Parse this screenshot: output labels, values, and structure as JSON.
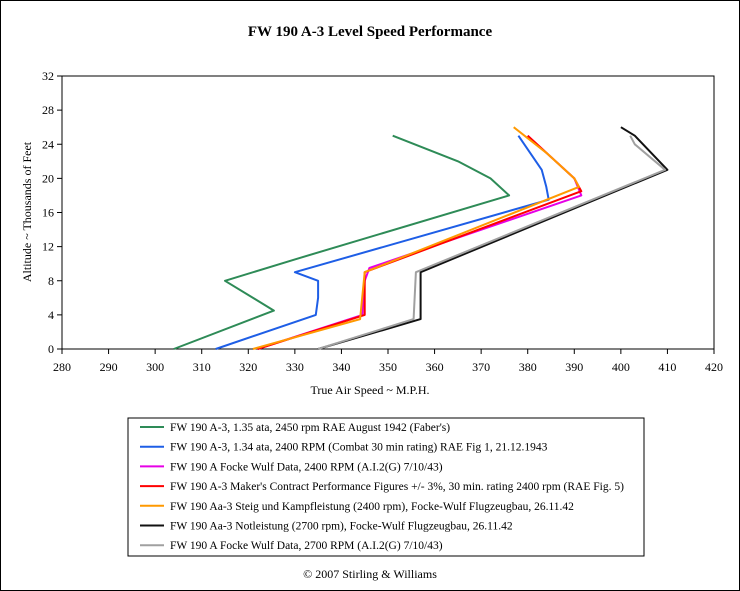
{
  "chart_data": {
    "type": "line",
    "title": "FW 190 A-3 Level Speed Performance",
    "xlabel": "True Air Speed ~ M.P.H.",
    "ylabel": "Altitude ~ Thousands of Feet",
    "xlim": [
      280,
      420
    ],
    "ylim": [
      0,
      32
    ],
    "xticks": [
      280,
      290,
      300,
      310,
      320,
      330,
      340,
      350,
      360,
      370,
      380,
      390,
      400,
      410,
      420
    ],
    "yticks": [
      0,
      4,
      8,
      12,
      16,
      20,
      24,
      28,
      32
    ],
    "grid": false,
    "legend_position": "bottom",
    "series": [
      {
        "name": "FW 190 A-3, 1.35 ata, 2450 rpm RAE August 1942 (Faber's)",
        "color": "#2e8b57",
        "points": [
          [
            304,
            0
          ],
          [
            325.5,
            4.5
          ],
          [
            315,
            8
          ],
          [
            330,
            10.5
          ],
          [
            376,
            18
          ],
          [
            372,
            20
          ],
          [
            365,
            22
          ],
          [
            351,
            25
          ]
        ]
      },
      {
        "name": "FW 190 A-3, 1.34 ata, 2400 RPM (Combat 30 min rating) RAE Fig 1, 21.12.1943",
        "color": "#1e5ee6",
        "points": [
          [
            313,
            0
          ],
          [
            334.5,
            4
          ],
          [
            335,
            6
          ],
          [
            335,
            8
          ],
          [
            330,
            9
          ],
          [
            384.5,
            17.5
          ],
          [
            384,
            19
          ],
          [
            383,
            21
          ],
          [
            378,
            25
          ]
        ]
      },
      {
        "name": "FW 190 A Focke Wulf Data, 2400 RPM (A.I.2(G) 7/10/43)",
        "color": "#e600e6",
        "points": [
          [
            322,
            0
          ],
          [
            344.5,
            4
          ],
          [
            345,
            8
          ],
          [
            346,
            9.5
          ],
          [
            391.5,
            18
          ],
          [
            390,
            20
          ],
          [
            386,
            22
          ],
          [
            380,
            25
          ]
        ]
      },
      {
        "name": "FW 190 A-3 Maker's Contract Performance Figures +/- 3%, 30 min. rating 2400 rpm (RAE Fig. 5)",
        "color": "#ff0000",
        "points": [
          [
            322,
            0
          ],
          [
            345,
            4
          ],
          [
            345,
            9
          ],
          [
            391.5,
            18.5
          ],
          [
            390,
            20
          ],
          [
            386,
            22
          ],
          [
            380,
            25
          ]
        ]
      },
      {
        "name": "FW 190 Aa-3 Steig und Kampfleistung (2400 rpm), Focke-Wulf Flugzeugbau, 26.11.42",
        "color": "#ff9900",
        "points": [
          [
            321,
            0
          ],
          [
            344,
            3.5
          ],
          [
            345,
            9
          ],
          [
            391,
            19
          ],
          [
            390,
            20
          ],
          [
            384,
            23
          ],
          [
            377,
            26
          ]
        ]
      },
      {
        "name": "FW 190 Aa-3 Notleistung (2700 rpm), Focke-Wulf Flugzeugbau, 26.11.42",
        "color": "#111111",
        "points": [
          [
            335,
            0
          ],
          [
            357,
            3.5
          ],
          [
            357,
            9
          ],
          [
            410,
            21
          ],
          [
            403,
            25
          ],
          [
            400,
            26
          ]
        ]
      },
      {
        "name": "FW 190 A Focke Wulf Data, 2700 RPM (A.I.2(G) 7/10/43)",
        "color": "#a0a0a0",
        "points": [
          [
            335,
            0
          ],
          [
            355.5,
            3.5
          ],
          [
            356,
            9
          ],
          [
            409.5,
            21
          ],
          [
            403,
            24
          ],
          [
            402,
            25
          ]
        ]
      }
    ],
    "annotations": [
      "© 2007 Stirling & Williams"
    ]
  }
}
